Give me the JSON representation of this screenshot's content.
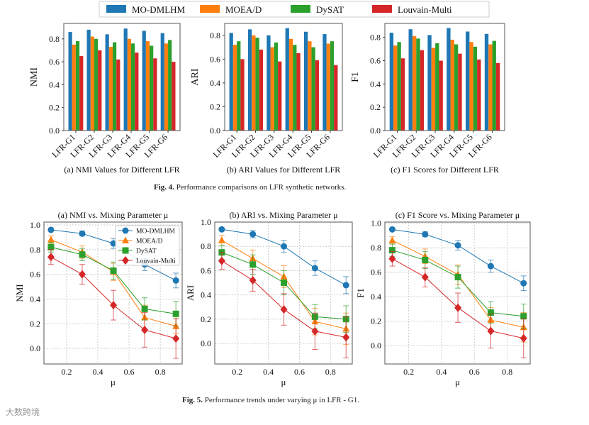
{
  "legend": {
    "series": [
      "MO-DMLHM",
      "MOEA/D",
      "DySAT",
      "Louvain-Multi"
    ],
    "colors": [
      "#1f77b4",
      "#ff7f0e",
      "#2ca02c",
      "#d62728"
    ]
  },
  "figure4": {
    "label": "Fig. 4.",
    "caption": "Performance comparisons on LFR synthetic networks."
  },
  "figure5": {
    "label": "Fig. 5.",
    "caption": "Performance trends under varying μ in LFR - G1."
  },
  "watermark": "大数跨境",
  "chart_data": [
    {
      "type": "bar",
      "title": "(a) NMI Values for Different LFR",
      "ylabel": "NMI",
      "ylim": [
        0,
        0.935
      ],
      "yticks": [
        "0.0",
        "0.2",
        "0.4",
        "0.6",
        "0.8"
      ],
      "categories": [
        "LFR-G1",
        "LFR-G2",
        "LFR-G3",
        "LFR-G4",
        "LFR-G5",
        "LFR-G6"
      ],
      "series": [
        {
          "name": "MO-DMLHM",
          "values": [
            0.86,
            0.88,
            0.84,
            0.89,
            0.87,
            0.85
          ]
        },
        {
          "name": "MOEA/D",
          "values": [
            0.75,
            0.82,
            0.73,
            0.8,
            0.78,
            0.76
          ]
        },
        {
          "name": "DySAT",
          "values": [
            0.78,
            0.8,
            0.77,
            0.76,
            0.74,
            0.79
          ]
        },
        {
          "name": "Louvain-Multi",
          "values": [
            0.65,
            0.7,
            0.62,
            0.68,
            0.63,
            0.6
          ]
        }
      ]
    },
    {
      "type": "bar",
      "title": "(b) ARI Values for Different LFR",
      "ylabel": "ARI",
      "ylim": [
        0,
        0.9
      ],
      "yticks": [
        "0.0",
        "0.2",
        "0.4",
        "0.6",
        "0.8"
      ],
      "categories": [
        "LFR-G1",
        "LFR-G2",
        "LFR-G3",
        "LFR-G4",
        "LFR-G5",
        "LFR-G6"
      ],
      "series": [
        {
          "name": "MO-DMLHM",
          "values": [
            0.82,
            0.85,
            0.8,
            0.86,
            0.83,
            0.81
          ]
        },
        {
          "name": "MOEA/D",
          "values": [
            0.72,
            0.8,
            0.7,
            0.77,
            0.75,
            0.73
          ]
        },
        {
          "name": "DySAT",
          "values": [
            0.75,
            0.78,
            0.74,
            0.72,
            0.7,
            0.75
          ]
        },
        {
          "name": "Louvain-Multi",
          "values": [
            0.6,
            0.68,
            0.58,
            0.65,
            0.59,
            0.55
          ]
        }
      ]
    },
    {
      "type": "bar",
      "title": "(c) F1 Scores for Different LFR",
      "ylabel": "F1",
      "ylim": [
        0,
        0.92
      ],
      "yticks": [
        "0.0",
        "0.2",
        "0.4",
        "0.6",
        "0.8"
      ],
      "categories": [
        "LFR-G1",
        "LFR-G2",
        "LFR-G3",
        "LFR-G4",
        "LFR-G5",
        "LFR-G6"
      ],
      "series": [
        {
          "name": "MO-DMLHM",
          "values": [
            0.84,
            0.87,
            0.82,
            0.88,
            0.85,
            0.83
          ]
        },
        {
          "name": "MOEA/D",
          "values": [
            0.73,
            0.81,
            0.71,
            0.78,
            0.76,
            0.74
          ]
        },
        {
          "name": "DySAT",
          "values": [
            0.76,
            0.79,
            0.75,
            0.74,
            0.72,
            0.77
          ]
        },
        {
          "name": "Louvain-Multi",
          "values": [
            0.62,
            0.69,
            0.6,
            0.66,
            0.61,
            0.58
          ]
        }
      ]
    },
    {
      "type": "line",
      "title": "(a) NMI vs. Mixing Parameter μ",
      "xlabel": "μ",
      "ylabel": "NMI",
      "xlim": [
        0.055,
        0.94
      ],
      "ylim": [
        -0.126,
        1.023
      ],
      "xticks": [
        "0.2",
        "0.4",
        "0.6",
        "0.8"
      ],
      "yticks": [
        "0.0",
        "0.2",
        "0.4",
        "0.6",
        "0.8",
        "1.0"
      ],
      "legend": "upper-right",
      "grid": true,
      "x": [
        0.1,
        0.3,
        0.5,
        0.7,
        0.9
      ],
      "series": [
        {
          "name": "MO-DMLHM",
          "values": [
            0.96,
            0.93,
            0.85,
            0.68,
            0.55
          ],
          "err": [
            0.01,
            0.02,
            0.04,
            0.05,
            0.06
          ]
        },
        {
          "name": "MOEA/D",
          "values": [
            0.88,
            0.78,
            0.62,
            0.25,
            0.18
          ],
          "err": [
            0.03,
            0.05,
            0.07,
            0.1,
            0.06
          ]
        },
        {
          "name": "DySAT",
          "values": [
            0.82,
            0.76,
            0.63,
            0.32,
            0.28
          ],
          "err": [
            0.04,
            0.05,
            0.07,
            0.09,
            0.1
          ]
        },
        {
          "name": "Louvain-Multi",
          "values": [
            0.74,
            0.6,
            0.35,
            0.15,
            0.08
          ],
          "err": [
            0.06,
            0.08,
            0.12,
            0.14,
            0.16
          ]
        }
      ]
    },
    {
      "type": "line",
      "title": "(b) ARI vs. Mixing Parameter μ",
      "xlabel": "μ",
      "ylabel": "ARI",
      "xlim": [
        0.055,
        0.94
      ],
      "ylim": [
        -0.17,
        1.0
      ],
      "xticks": [
        "0.2",
        "0.4",
        "0.6",
        "0.8"
      ],
      "yticks": [
        "0.0",
        "0.2",
        "0.4",
        "0.6",
        "0.8",
        "1.0"
      ],
      "grid": true,
      "x": [
        0.1,
        0.3,
        0.5,
        0.7,
        0.9
      ],
      "series": [
        {
          "name": "MO-DMLHM",
          "values": [
            0.94,
            0.9,
            0.8,
            0.62,
            0.48
          ],
          "err": [
            0.01,
            0.03,
            0.05,
            0.06,
            0.07
          ]
        },
        {
          "name": "MOEA/D",
          "values": [
            0.85,
            0.7,
            0.55,
            0.18,
            0.12
          ],
          "err": [
            0.04,
            0.07,
            0.09,
            0.11,
            0.13
          ]
        },
        {
          "name": "DySAT",
          "values": [
            0.75,
            0.65,
            0.5,
            0.22,
            0.2
          ],
          "err": [
            0.06,
            0.08,
            0.1,
            0.1,
            0.11
          ]
        },
        {
          "name": "Louvain-Multi",
          "values": [
            0.68,
            0.52,
            0.28,
            0.1,
            0.05
          ],
          "err": [
            0.07,
            0.09,
            0.13,
            0.15,
            0.17
          ]
        }
      ]
    },
    {
      "type": "line",
      "title": "(c) F1 Score vs. Mixing Parameter μ",
      "xlabel": "μ",
      "ylabel": "F1",
      "xlim": [
        0.055,
        0.94
      ],
      "ylim": [
        -0.15,
        1.01
      ],
      "xticks": [
        "0.2",
        "0.4",
        "0.6",
        "0.8"
      ],
      "yticks": [
        "0.0",
        "0.2",
        "0.4",
        "0.6",
        "0.8",
        "1.0"
      ],
      "grid": true,
      "x": [
        0.1,
        0.3,
        0.5,
        0.7,
        0.9
      ],
      "series": [
        {
          "name": "MO-DMLHM",
          "values": [
            0.95,
            0.91,
            0.82,
            0.65,
            0.51
          ],
          "err": [
            0.01,
            0.02,
            0.04,
            0.05,
            0.06
          ]
        },
        {
          "name": "MOEA/D",
          "values": [
            0.86,
            0.73,
            0.58,
            0.21,
            0.15
          ],
          "err": [
            0.03,
            0.06,
            0.08,
            0.1,
            0.12
          ]
        },
        {
          "name": "DySAT",
          "values": [
            0.78,
            0.7,
            0.56,
            0.27,
            0.24
          ],
          "err": [
            0.05,
            0.07,
            0.09,
            0.09,
            0.1
          ]
        },
        {
          "name": "Louvain-Multi",
          "values": [
            0.71,
            0.56,
            0.31,
            0.12,
            0.06
          ],
          "err": [
            0.06,
            0.08,
            0.12,
            0.14,
            0.16
          ]
        }
      ]
    }
  ]
}
